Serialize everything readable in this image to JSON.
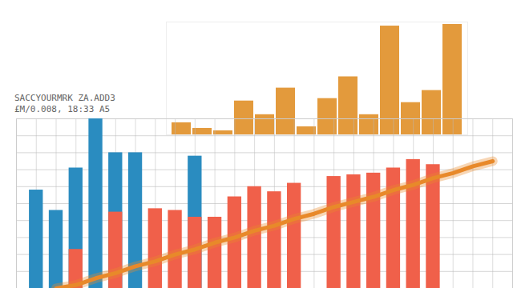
{
  "chart_data": [
    {
      "type": "bar",
      "categories": [
        null,
        null,
        null,
        null,
        null,
        null,
        null,
        null,
        null,
        null,
        null,
        null,
        null,
        null
      ],
      "values": [
        15,
        8,
        5,
        42,
        25,
        58,
        10,
        45,
        72,
        25,
        135,
        40,
        55,
        137
      ],
      "color": "#e39a3c",
      "ylim": [
        0,
        140
      ],
      "tick_labels": false
    },
    {
      "type": "bar",
      "title": "SACCYOURMRK ZA.ADD3",
      "subtitle": "£M/0.008, 18:33 A5",
      "x": [
        1,
        2,
        3,
        4,
        5,
        6,
        7,
        8,
        9,
        10,
        11,
        12,
        13,
        14,
        15,
        16,
        17,
        18,
        19,
        20,
        21,
        22,
        23,
        24
      ],
      "xlim": [
        0,
        25
      ],
      "xticks": [
        1,
        2,
        3,
        4,
        5,
        6,
        7,
        8,
        9,
        10,
        11,
        12,
        13,
        14,
        15,
        16,
        17,
        18,
        19,
        20,
        21,
        22,
        23,
        24
      ],
      "ylim": [
        0,
        100
      ],
      "yticks": [
        0,
        10,
        20,
        30,
        40,
        50,
        60,
        70,
        80,
        90,
        100
      ],
      "grid": true,
      "tick_labels": false,
      "series": [
        {
          "type": "bar",
          "color": "#2a8cc0",
          "values": [
            58,
            46,
            71,
            100,
            80,
            80,
            null,
            null,
            78,
            null,
            null,
            null,
            null,
            null,
            null,
            null,
            null,
            null,
            null,
            null,
            null,
            null,
            null,
            null
          ]
        },
        {
          "type": "bar",
          "color": "#f0604a",
          "values": [
            null,
            null,
            23,
            null,
            45,
            null,
            47,
            46,
            42,
            42,
            54,
            60,
            57,
            62,
            null,
            66,
            67,
            68,
            71,
            76,
            73,
            null,
            null,
            null
          ]
        },
        {
          "type": "line",
          "color": "#e8892a",
          "values": [
            null,
            0,
            2,
            6,
            9,
            13,
            16,
            20,
            23,
            27,
            30,
            34,
            37,
            41,
            44,
            48,
            51,
            54,
            58,
            61,
            65,
            68,
            72,
            75
          ]
        }
      ]
    }
  ]
}
